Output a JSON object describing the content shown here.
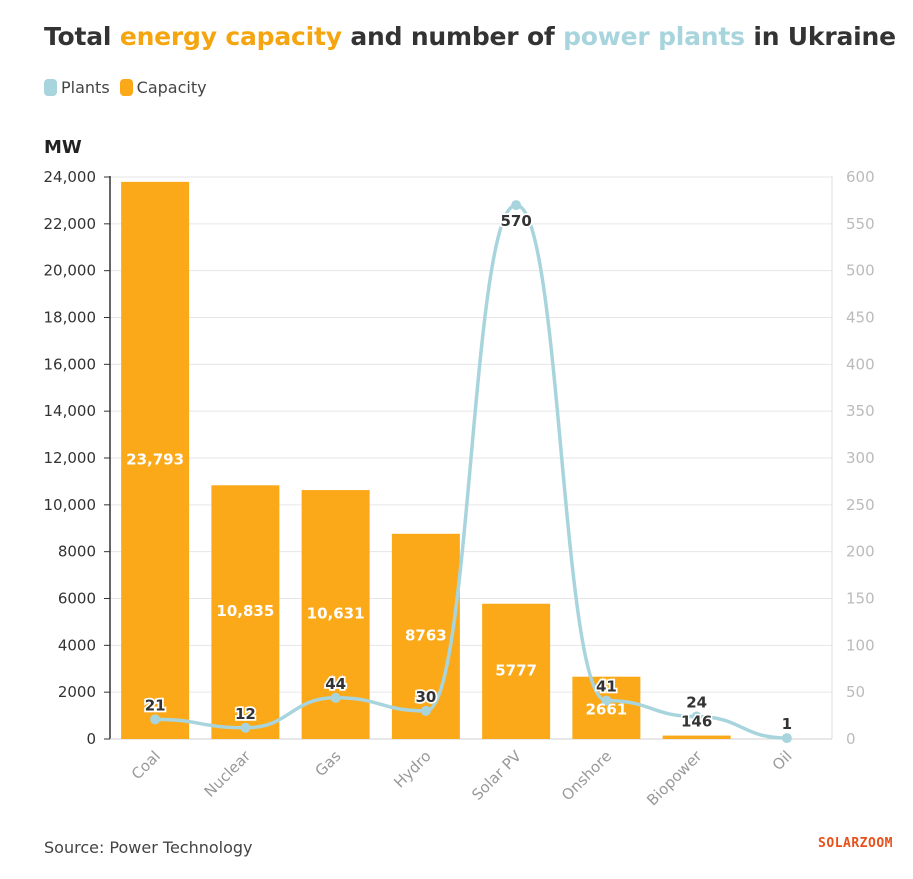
{
  "title": {
    "part1": "Total ",
    "highlight_capacity": "energy capacity",
    "part2": " and number of ",
    "highlight_plants": "power plants",
    "part3": " in Ukraine"
  },
  "legend": {
    "plants_label": "Plants",
    "capacity_label": "Capacity"
  },
  "unit_label": "MW",
  "source": "Source: Power Technology",
  "brand": "SOLARZOOM",
  "colors": {
    "capacity": "#fba919",
    "plants": "#a8d5dd",
    "title_capacity": "#f5a50f",
    "brand": "#e8501a"
  },
  "chart_data": {
    "type": "bar",
    "title": "Total energy capacity and number of power plants in Ukraine",
    "categories": [
      "Coal",
      "Nuclear",
      "Gas",
      "Hydro",
      "Solar PV",
      "Onshore",
      "Biopower",
      "Oil"
    ],
    "series": [
      {
        "name": "Capacity",
        "type": "bar",
        "axis": "left",
        "values": [
          23793,
          10835,
          10631,
          8763,
          5777,
          2661,
          146,
          0
        ],
        "labels": [
          "23,793",
          "10,835",
          "10,631",
          "8763",
          "5777",
          "2661",
          "146",
          ""
        ]
      },
      {
        "name": "Plants",
        "type": "line",
        "axis": "right",
        "values": [
          21,
          12,
          44,
          30,
          570,
          41,
          24,
          1
        ],
        "labels": [
          "21",
          "12",
          "44",
          "30",
          "570",
          "41",
          "24",
          "1"
        ]
      }
    ],
    "y_left": {
      "label": "MW",
      "min": 0,
      "max": 24000,
      "ticks": [
        "0",
        "2000",
        "4000",
        "6000",
        "8000",
        "10,000",
        "12,000",
        "14,000",
        "16,000",
        "18,000",
        "20,000",
        "22,000",
        "24,000"
      ]
    },
    "y_right": {
      "min": 0,
      "max": 600,
      "ticks": [
        "0",
        "50",
        "100",
        "150",
        "200",
        "250",
        "300",
        "350",
        "400",
        "450",
        "500",
        "550",
        "600"
      ]
    },
    "grid": true,
    "legend_position": "top-left"
  }
}
